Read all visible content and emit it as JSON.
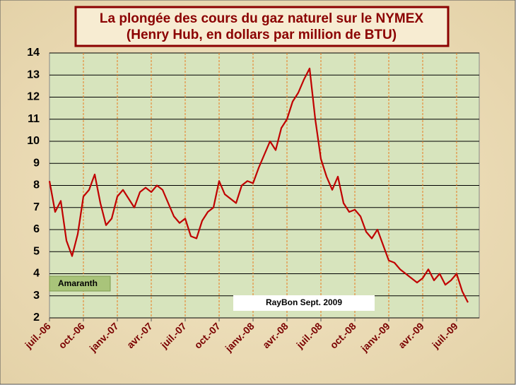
{
  "chart_data": {
    "type": "line",
    "title": "La  plongée des cours du gaz naturel sur le NYMEX",
    "subtitle": "(Henry Hub, en dollars par million de BTU)",
    "annotations": [
      "Amaranth",
      "RayBon  Sept. 2009"
    ],
    "categories": [
      "juil.-06",
      null,
      null,
      null,
      null,
      null,
      "oct.-06",
      null,
      null,
      null,
      null,
      null,
      "janv.-07",
      null,
      null,
      null,
      null,
      null,
      "avr.-07",
      null,
      null,
      null,
      null,
      null,
      "juil.-07",
      null,
      null,
      null,
      null,
      null,
      "oct.-07",
      null,
      null,
      null,
      null,
      null,
      "janv.-08",
      null,
      null,
      null,
      null,
      null,
      "avr.-08",
      null,
      null,
      null,
      null,
      null,
      "juil.-08",
      null,
      null,
      null,
      null,
      null,
      "oct.-08",
      null,
      null,
      null,
      null,
      null,
      "janv.-09",
      null,
      null,
      null,
      null,
      null,
      "avr.-09",
      null,
      null,
      null,
      null,
      null,
      "juil.-09",
      null,
      null
    ],
    "series": [
      {
        "name": "Henry Hub",
        "color": "#c00000",
        "values": [
          8.2,
          6.8,
          7.3,
          5.5,
          4.8,
          5.8,
          7.5,
          7.8,
          8.5,
          7.2,
          6.2,
          6.5,
          7.5,
          7.8,
          7.4,
          7.0,
          7.7,
          7.9,
          7.7,
          8.0,
          7.8,
          7.2,
          6.6,
          6.3,
          6.5,
          5.7,
          5.6,
          6.4,
          6.8,
          7.0,
          8.2,
          7.6,
          7.4,
          7.2,
          8.0,
          8.2,
          8.1,
          8.8,
          9.4,
          10.0,
          9.6,
          10.6,
          11.0,
          11.8,
          12.2,
          12.8,
          13.3,
          11.0,
          9.2,
          8.4,
          7.8,
          8.4,
          7.2,
          6.8,
          6.9,
          6.6,
          5.9,
          5.6,
          6.0,
          5.3,
          4.6,
          4.5,
          4.2,
          4.0,
          3.8,
          3.6,
          3.8,
          4.2,
          3.7,
          4.0,
          3.5,
          3.7,
          4.0,
          3.2,
          2.7
        ]
      }
    ],
    "ylim": [
      2,
      14
    ],
    "yticks": [
      2,
      3,
      4,
      5,
      6,
      7,
      8,
      9,
      10,
      11,
      12,
      13,
      14
    ],
    "grid": true
  }
}
